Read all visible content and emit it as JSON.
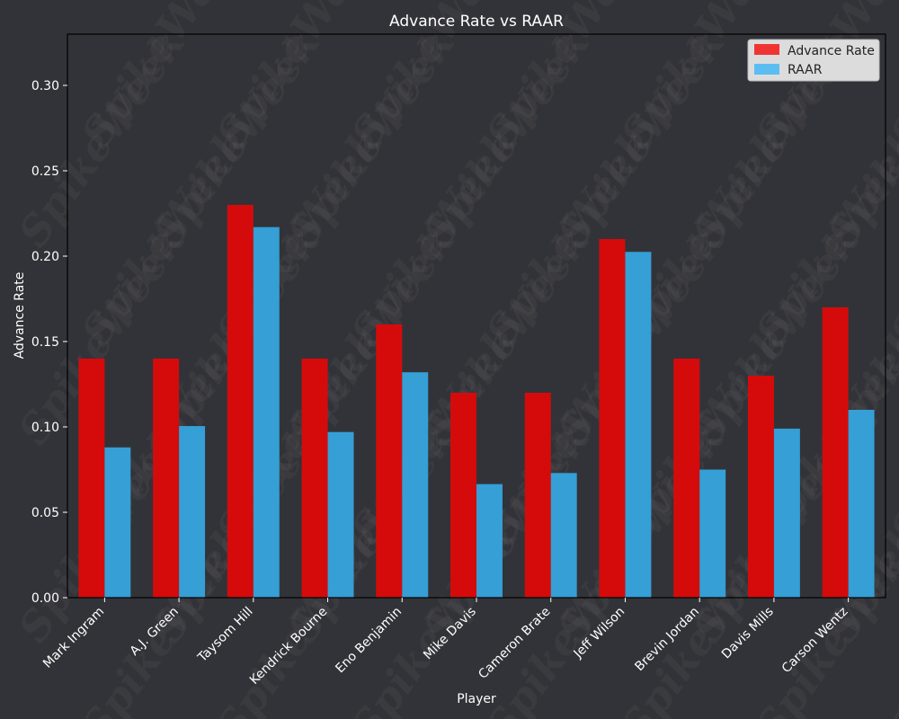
{
  "chart_data": {
    "type": "bar",
    "title": "Advance Rate vs RAAR",
    "xlabel": "Player",
    "ylabel": "Advance Rate",
    "ylim": [
      0,
      0.33
    ],
    "yticks": [
      0.0,
      0.05,
      0.1,
      0.15,
      0.2,
      0.25,
      0.3
    ],
    "ytick_labels": [
      "0.00",
      "0.05",
      "0.10",
      "0.15",
      "0.20",
      "0.25",
      "0.30"
    ],
    "categories": [
      "Mark Ingram",
      "A.J. Green",
      "Taysom Hill",
      "Kendrick Bourne",
      "Eno Benjamin",
      "Mike Davis",
      "Cameron Brate",
      "Jeff Wilson",
      "Brevin Jordan",
      "Davis Mills",
      "Carson Wentz"
    ],
    "series": [
      {
        "name": "Advance Rate",
        "color": "#d50b0b",
        "legend_color": "#f03434",
        "values": [
          0.14,
          0.14,
          0.23,
          0.14,
          0.16,
          0.12,
          0.12,
          0.21,
          0.14,
          0.13,
          0.17
        ]
      },
      {
        "name": "RAAR",
        "color": "#359fd6",
        "legend_color": "#5bbef2",
        "values": [
          0.088,
          0.1005,
          0.217,
          0.097,
          0.132,
          0.0665,
          0.073,
          0.2025,
          0.075,
          0.099,
          0.11
        ]
      }
    ],
    "grid": false,
    "legend_position": "top-right",
    "background_color": "#323338",
    "watermark": "SpikeWeek"
  }
}
